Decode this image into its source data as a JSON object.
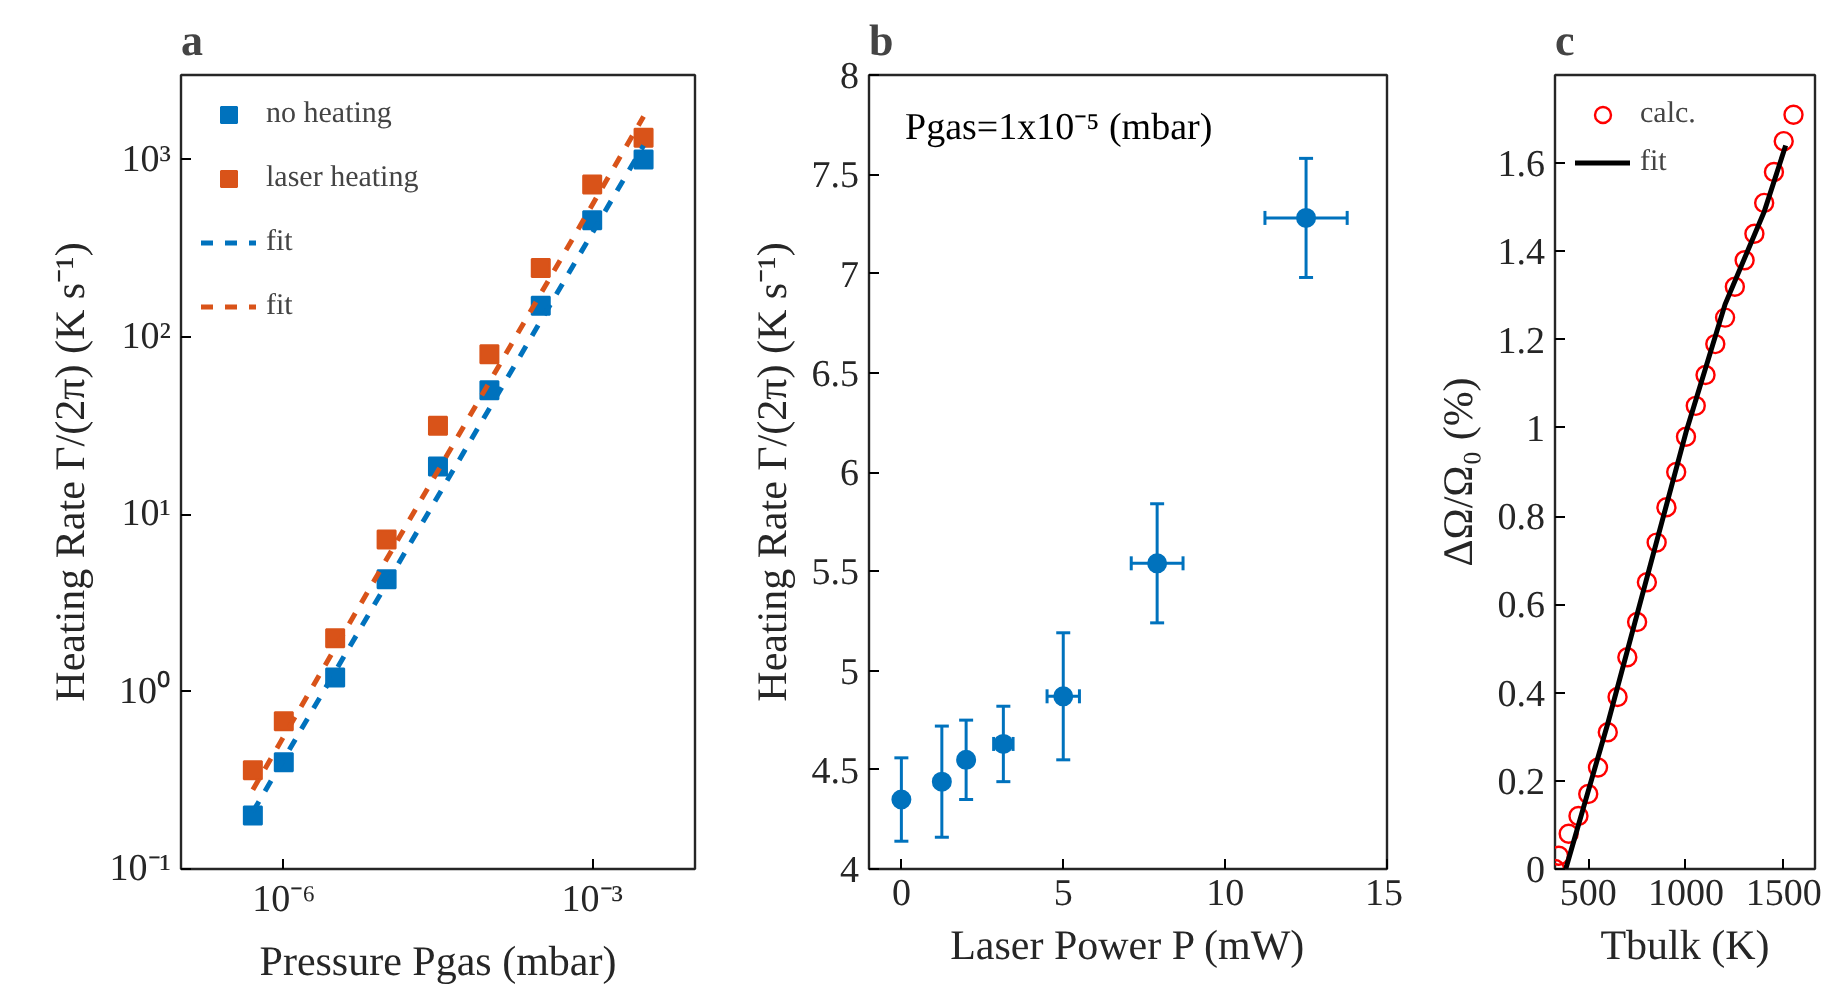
{
  "chart_data": [
    {
      "type": "scatter",
      "title": "a",
      "xlabel": "Pressure Pgas (mbar)",
      "ylabel": "Heating Rate Γ/(2π) (K s⁻¹)",
      "log": "xy",
      "xlim": [
        1e-07,
        0.01
      ],
      "ylim": [
        0.1,
        3000
      ],
      "xticks": [
        {
          "value": 1e-06,
          "label": "10⁻⁶"
        },
        {
          "value": 0.001,
          "label": "10⁻³"
        }
      ],
      "yticks": [
        {
          "value": 0.1,
          "label": "10⁻¹"
        },
        {
          "value": 1,
          "label": "10⁰"
        },
        {
          "value": 10,
          "label": "10¹"
        },
        {
          "value": 100,
          "label": "10²"
        },
        {
          "value": 1000,
          "label": "10³"
        }
      ],
      "grid": false,
      "legend": "top left",
      "series": [
        {
          "name": "no heating",
          "marker": "square",
          "color": "#0072bd",
          "x": [
            5e-07,
            1e-06,
            3.16e-06,
            1e-05,
            3.16e-05,
            0.0001,
            0.000316,
            0.001,
            0.00316
          ],
          "values": [
            0.2,
            0.4,
            1.2,
            4.3,
            18.6,
            50,
            150,
            455,
            1000
          ]
        },
        {
          "name": "laser heating",
          "marker": "square",
          "color": "#d95319",
          "x": [
            5e-07,
            1e-06,
            3.16e-06,
            1e-05,
            3.16e-05,
            0.0001,
            0.000316,
            0.001,
            0.00316
          ],
          "values": [
            0.36,
            0.68,
            2.0,
            7.2,
            31.6,
            80,
            245,
            725,
            1330
          ]
        },
        {
          "name": "fit",
          "type": "line",
          "line_style": "dashed",
          "color": "#0072bd",
          "x": [
            5e-07,
            0.00316
          ],
          "values": [
            0.21,
            1200
          ]
        },
        {
          "name": "fit",
          "type": "line",
          "line_style": "dashed",
          "color": "#d95319",
          "x": [
            5e-07,
            0.00316
          ],
          "values": [
            0.28,
            1750
          ]
        }
      ]
    },
    {
      "type": "scatter",
      "title": "b",
      "xlabel": "Laser Power P (mW)",
      "ylabel": "Heating Rate Γ/(2π) (K s⁻¹)",
      "xlim": [
        -1,
        15
      ],
      "ylim": [
        4,
        8
      ],
      "xticks": [
        0,
        5,
        10,
        15
      ],
      "yticks": [
        4,
        4.5,
        5,
        5.5,
        6,
        6.5,
        7,
        7.5,
        8
      ],
      "grid": false,
      "marker": "circle",
      "annotations": [
        "Pgas=1x10⁻⁵ (mbar)"
      ],
      "series": [
        {
          "color": "#0072bd",
          "x": [
            0,
            1.25,
            2,
            3.15,
            5,
            7.9,
            12.5
          ],
          "values": [
            4.35,
            4.44,
            4.55,
            4.63,
            4.87,
            5.54,
            7.28
          ],
          "errors": [
            0.21,
            0.28,
            0.2,
            0.19,
            0.32,
            0.3,
            0.3
          ],
          "xerrors": [
            null,
            null,
            null,
            0.3,
            0.5,
            0.8,
            1.27
          ]
        }
      ]
    },
    {
      "type": "scatter",
      "title": "c",
      "xlabel": "Tbulk (K)",
      "ylabel": "ΔΩ/Ω₀ (%)",
      "xlim": [
        330,
        1660
      ],
      "ylim": [
        0,
        1.8
      ],
      "xticks": [
        500,
        1000,
        1500
      ],
      "yticks": [
        0,
        {
          "value": 0.2,
          "label": "0.2"
        },
        {
          "value": 0.4,
          "label": "0.4"
        },
        {
          "value": 0.6,
          "label": "0.6"
        },
        {
          "value": 0.8,
          "label": "0.8"
        },
        1,
        {
          "value": 1.2,
          "label": "1.2"
        },
        {
          "value": 1.4,
          "label": "1.4"
        },
        {
          "value": 1.6,
          "label": "1.6"
        }
      ],
      "grid": false,
      "legend": "top left",
      "series": [
        {
          "name": "calc.",
          "marker": "circle",
          "color": "#ff0000",
          "x": [
            330,
            350,
            400,
            450,
            500,
            550,
            600,
            650,
            700,
            750,
            800,
            850,
            900,
            950,
            1000,
            1050,
            1100,
            1150,
            1200,
            1250,
            1300,
            1350,
            1400,
            1450,
            1500,
            1550
          ],
          "values": [
            0.0,
            0.03,
            0.08,
            0.12,
            0.17,
            0.23,
            0.31,
            0.39,
            0.48,
            0.56,
            0.65,
            0.74,
            0.82,
            0.9,
            0.98,
            1.05,
            1.12,
            1.19,
            1.25,
            1.32,
            1.38,
            1.44,
            1.51,
            1.58,
            1.65,
            1.71
          ]
        },
        {
          "name": "fit",
          "type": "line",
          "line_style": "solid",
          "color": "#000000",
          "x": [
            385,
            600,
            800,
            1000,
            1200,
            1400,
            1510
          ],
          "values": [
            0,
            0.33,
            0.66,
            0.99,
            1.28,
            1.49,
            1.64
          ]
        }
      ]
    }
  ]
}
